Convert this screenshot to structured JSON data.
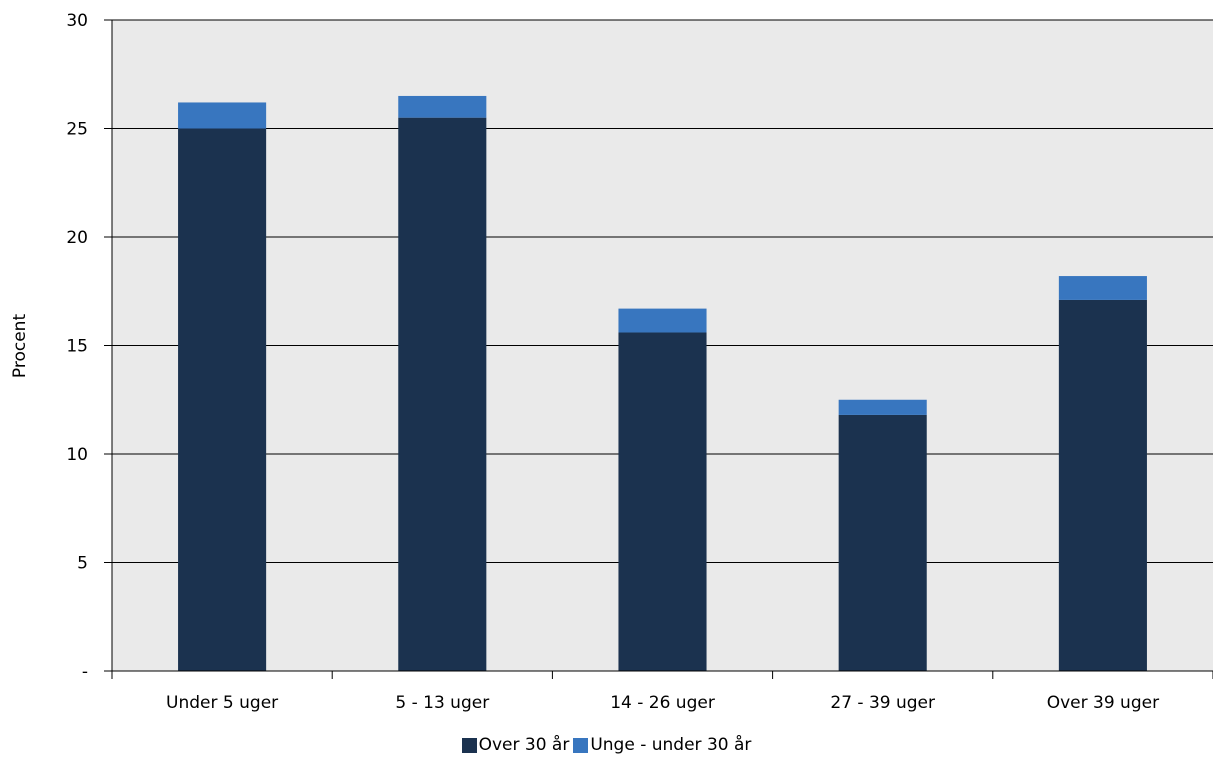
{
  "chart_data": {
    "type": "bar",
    "stacked": true,
    "categories": [
      "Under 5 uger",
      "5 - 13 uger",
      "14 - 26 uger",
      "27 - 39 uger",
      "Over 39 uger"
    ],
    "series": [
      {
        "name": "Over 30 år",
        "color": "#1b324f",
        "values": [
          25.0,
          25.5,
          15.6,
          11.8,
          17.1
        ]
      },
      {
        "name": "Unge - under 30 år",
        "color": "#3876bf",
        "values": [
          1.2,
          1.0,
          1.1,
          0.7,
          1.1
        ]
      }
    ],
    "ylabel": "Procent",
    "xlabel": "",
    "ylim": [
      0,
      30
    ],
    "yticks": [
      "-",
      "5",
      "10",
      "15",
      "20",
      "25",
      "30"
    ],
    "grid": true,
    "plot_background": "#eaeaea",
    "legend_position": "bottom"
  }
}
